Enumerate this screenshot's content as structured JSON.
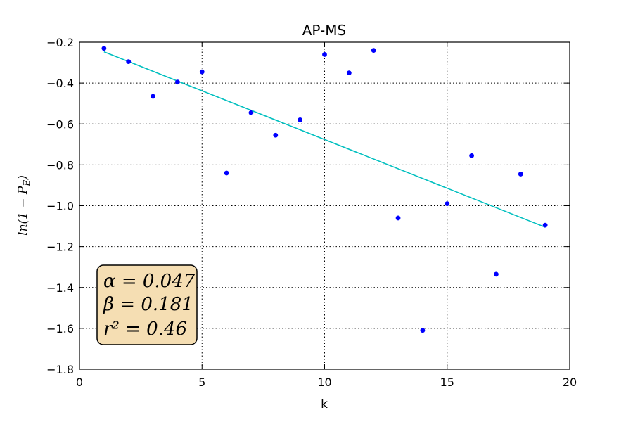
{
  "chart_data": {
    "type": "scatter",
    "title": "AP-MS",
    "xlabel": "k",
    "ylabel": "ln(1 − P_E)",
    "ylabel_display": "ln(1 − P",
    "ylabel_sub": "E",
    "ylabel_close": ")",
    "xlim": [
      0,
      20
    ],
    "ylim": [
      -1.8,
      -0.2
    ],
    "xticks": [
      0,
      5,
      10,
      15,
      20
    ],
    "xtick_labels": [
      "0",
      "5",
      "10",
      "15",
      "20"
    ],
    "yticks": [
      -1.8,
      -1.6,
      -1.4,
      -1.2,
      -1.0,
      -0.8,
      -0.6,
      -0.4,
      -0.2
    ],
    "ytick_labels": [
      "−1.8",
      "−1.6",
      "−1.4",
      "−1.2",
      "−1.0",
      "−0.8",
      "−0.6",
      "−0.4",
      "−0.2"
    ],
    "grid": true,
    "points": {
      "color": "#0000ff",
      "x": [
        1,
        2,
        3,
        4,
        5,
        6,
        7,
        8,
        9,
        10,
        11,
        12,
        13,
        14,
        15,
        16,
        17,
        18,
        19
      ],
      "y": [
        -0.23,
        -0.295,
        -0.465,
        -0.395,
        -0.345,
        -0.84,
        -0.545,
        -0.655,
        -0.58,
        -0.26,
        -0.35,
        -0.24,
        -1.06,
        -1.61,
        -0.99,
        -0.755,
        -1.335,
        -0.845,
        -1.095
      ]
    },
    "fit_line": {
      "color": "#00bfbf",
      "x": [
        1,
        19
      ],
      "y": [
        -0.247,
        -1.105
      ]
    },
    "annotation": {
      "lines": [
        "α = 0.047",
        "β = 0.181",
        "r² = 0.46"
      ],
      "box_color": "#f5deb3",
      "placement": "bottom-left"
    }
  }
}
